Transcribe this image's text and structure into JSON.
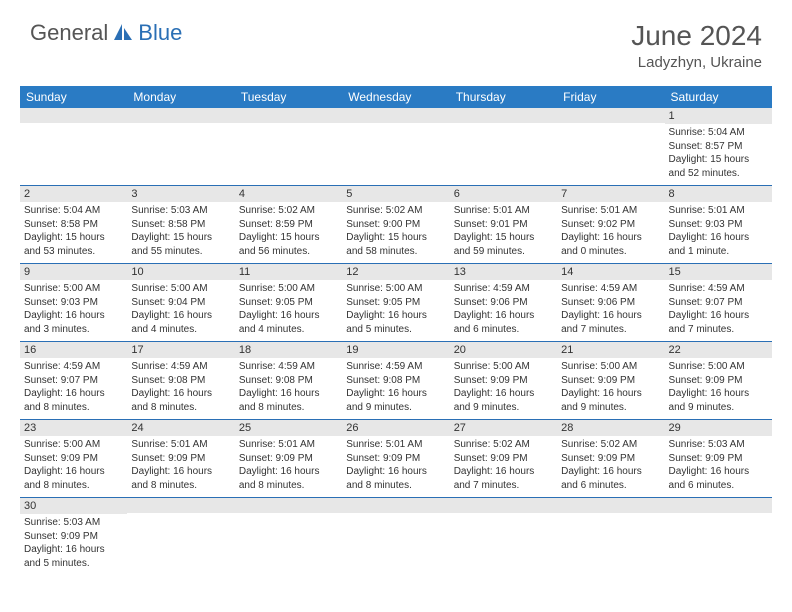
{
  "brand": {
    "part1": "General",
    "part2": "Blue"
  },
  "title": "June 2024",
  "location": "Ladyzhyn, Ukraine",
  "colors": {
    "header_bg": "#2a7bc4",
    "header_text": "#ffffff",
    "daynum_bg": "#e7e7e7",
    "border": "#2a6fb5",
    "brand_gray": "#555555",
    "brand_blue": "#2a6fb5"
  },
  "weekdays": [
    "Sunday",
    "Monday",
    "Tuesday",
    "Wednesday",
    "Thursday",
    "Friday",
    "Saturday"
  ],
  "weeks": [
    [
      {
        "day": "",
        "lines": []
      },
      {
        "day": "",
        "lines": []
      },
      {
        "day": "",
        "lines": []
      },
      {
        "day": "",
        "lines": []
      },
      {
        "day": "",
        "lines": []
      },
      {
        "day": "",
        "lines": []
      },
      {
        "day": "1",
        "lines": [
          "Sunrise: 5:04 AM",
          "Sunset: 8:57 PM",
          "Daylight: 15 hours",
          "and 52 minutes."
        ]
      }
    ],
    [
      {
        "day": "2",
        "lines": [
          "Sunrise: 5:04 AM",
          "Sunset: 8:58 PM",
          "Daylight: 15 hours",
          "and 53 minutes."
        ]
      },
      {
        "day": "3",
        "lines": [
          "Sunrise: 5:03 AM",
          "Sunset: 8:58 PM",
          "Daylight: 15 hours",
          "and 55 minutes."
        ]
      },
      {
        "day": "4",
        "lines": [
          "Sunrise: 5:02 AM",
          "Sunset: 8:59 PM",
          "Daylight: 15 hours",
          "and 56 minutes."
        ]
      },
      {
        "day": "5",
        "lines": [
          "Sunrise: 5:02 AM",
          "Sunset: 9:00 PM",
          "Daylight: 15 hours",
          "and 58 minutes."
        ]
      },
      {
        "day": "6",
        "lines": [
          "Sunrise: 5:01 AM",
          "Sunset: 9:01 PM",
          "Daylight: 15 hours",
          "and 59 minutes."
        ]
      },
      {
        "day": "7",
        "lines": [
          "Sunrise: 5:01 AM",
          "Sunset: 9:02 PM",
          "Daylight: 16 hours",
          "and 0 minutes."
        ]
      },
      {
        "day": "8",
        "lines": [
          "Sunrise: 5:01 AM",
          "Sunset: 9:03 PM",
          "Daylight: 16 hours",
          "and 1 minute."
        ]
      }
    ],
    [
      {
        "day": "9",
        "lines": [
          "Sunrise: 5:00 AM",
          "Sunset: 9:03 PM",
          "Daylight: 16 hours",
          "and 3 minutes."
        ]
      },
      {
        "day": "10",
        "lines": [
          "Sunrise: 5:00 AM",
          "Sunset: 9:04 PM",
          "Daylight: 16 hours",
          "and 4 minutes."
        ]
      },
      {
        "day": "11",
        "lines": [
          "Sunrise: 5:00 AM",
          "Sunset: 9:05 PM",
          "Daylight: 16 hours",
          "and 4 minutes."
        ]
      },
      {
        "day": "12",
        "lines": [
          "Sunrise: 5:00 AM",
          "Sunset: 9:05 PM",
          "Daylight: 16 hours",
          "and 5 minutes."
        ]
      },
      {
        "day": "13",
        "lines": [
          "Sunrise: 4:59 AM",
          "Sunset: 9:06 PM",
          "Daylight: 16 hours",
          "and 6 minutes."
        ]
      },
      {
        "day": "14",
        "lines": [
          "Sunrise: 4:59 AM",
          "Sunset: 9:06 PM",
          "Daylight: 16 hours",
          "and 7 minutes."
        ]
      },
      {
        "day": "15",
        "lines": [
          "Sunrise: 4:59 AM",
          "Sunset: 9:07 PM",
          "Daylight: 16 hours",
          "and 7 minutes."
        ]
      }
    ],
    [
      {
        "day": "16",
        "lines": [
          "Sunrise: 4:59 AM",
          "Sunset: 9:07 PM",
          "Daylight: 16 hours",
          "and 8 minutes."
        ]
      },
      {
        "day": "17",
        "lines": [
          "Sunrise: 4:59 AM",
          "Sunset: 9:08 PM",
          "Daylight: 16 hours",
          "and 8 minutes."
        ]
      },
      {
        "day": "18",
        "lines": [
          "Sunrise: 4:59 AM",
          "Sunset: 9:08 PM",
          "Daylight: 16 hours",
          "and 8 minutes."
        ]
      },
      {
        "day": "19",
        "lines": [
          "Sunrise: 4:59 AM",
          "Sunset: 9:08 PM",
          "Daylight: 16 hours",
          "and 9 minutes."
        ]
      },
      {
        "day": "20",
        "lines": [
          "Sunrise: 5:00 AM",
          "Sunset: 9:09 PM",
          "Daylight: 16 hours",
          "and 9 minutes."
        ]
      },
      {
        "day": "21",
        "lines": [
          "Sunrise: 5:00 AM",
          "Sunset: 9:09 PM",
          "Daylight: 16 hours",
          "and 9 minutes."
        ]
      },
      {
        "day": "22",
        "lines": [
          "Sunrise: 5:00 AM",
          "Sunset: 9:09 PM",
          "Daylight: 16 hours",
          "and 9 minutes."
        ]
      }
    ],
    [
      {
        "day": "23",
        "lines": [
          "Sunrise: 5:00 AM",
          "Sunset: 9:09 PM",
          "Daylight: 16 hours",
          "and 8 minutes."
        ]
      },
      {
        "day": "24",
        "lines": [
          "Sunrise: 5:01 AM",
          "Sunset: 9:09 PM",
          "Daylight: 16 hours",
          "and 8 minutes."
        ]
      },
      {
        "day": "25",
        "lines": [
          "Sunrise: 5:01 AM",
          "Sunset: 9:09 PM",
          "Daylight: 16 hours",
          "and 8 minutes."
        ]
      },
      {
        "day": "26",
        "lines": [
          "Sunrise: 5:01 AM",
          "Sunset: 9:09 PM",
          "Daylight: 16 hours",
          "and 8 minutes."
        ]
      },
      {
        "day": "27",
        "lines": [
          "Sunrise: 5:02 AM",
          "Sunset: 9:09 PM",
          "Daylight: 16 hours",
          "and 7 minutes."
        ]
      },
      {
        "day": "28",
        "lines": [
          "Sunrise: 5:02 AM",
          "Sunset: 9:09 PM",
          "Daylight: 16 hours",
          "and 6 minutes."
        ]
      },
      {
        "day": "29",
        "lines": [
          "Sunrise: 5:03 AM",
          "Sunset: 9:09 PM",
          "Daylight: 16 hours",
          "and 6 minutes."
        ]
      }
    ],
    [
      {
        "day": "30",
        "lines": [
          "Sunrise: 5:03 AM",
          "Sunset: 9:09 PM",
          "Daylight: 16 hours",
          "and 5 minutes."
        ]
      },
      {
        "day": "",
        "lines": []
      },
      {
        "day": "",
        "lines": []
      },
      {
        "day": "",
        "lines": []
      },
      {
        "day": "",
        "lines": []
      },
      {
        "day": "",
        "lines": []
      },
      {
        "day": "",
        "lines": []
      }
    ]
  ]
}
